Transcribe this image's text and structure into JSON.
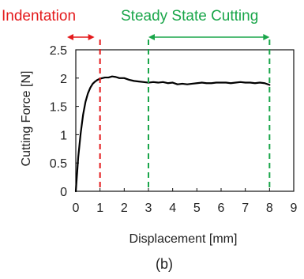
{
  "chart_data": {
    "type": "line",
    "xlabel": "Displacement [mm]",
    "ylabel": "Cutting Force [N]",
    "caption": "(b)",
    "xlim": [
      0,
      9
    ],
    "ylim": [
      0,
      2.5
    ],
    "x_ticks": [
      0,
      1,
      2,
      3,
      4,
      5,
      6,
      7,
      8,
      9
    ],
    "y_ticks": [
      0,
      0.5,
      1,
      1.5,
      2,
      2.5
    ],
    "grid": false,
    "series": [
      {
        "color": "#000000",
        "x": [
          0,
          0.05,
          0.1,
          0.2,
          0.3,
          0.4,
          0.5,
          0.6,
          0.7,
          0.8,
          0.9,
          1.0,
          1.1,
          1.2,
          1.35,
          1.5,
          1.65,
          1.8,
          2.0,
          2.2,
          2.4,
          2.6,
          2.8,
          3.0,
          3.2,
          3.4,
          3.6,
          3.8,
          4.0,
          4.2,
          4.4,
          4.6,
          4.8,
          5.0,
          5.2,
          5.4,
          5.6,
          5.8,
          6.0,
          6.2,
          6.4,
          6.6,
          6.8,
          7.0,
          7.2,
          7.4,
          7.6,
          7.8,
          8.0
        ],
        "y": [
          0.0,
          0.3,
          0.6,
          1.02,
          1.35,
          1.58,
          1.73,
          1.83,
          1.9,
          1.94,
          1.97,
          1.99,
          2.0,
          2.01,
          2.01,
          2.03,
          2.02,
          2.0,
          2.0,
          1.97,
          1.95,
          1.94,
          1.93,
          1.92,
          1.93,
          1.92,
          1.93,
          1.91,
          1.92,
          1.89,
          1.9,
          1.89,
          1.9,
          1.91,
          1.92,
          1.91,
          1.91,
          1.92,
          1.92,
          1.92,
          1.91,
          1.92,
          1.93,
          1.92,
          1.92,
          1.91,
          1.92,
          1.91,
          1.88
        ]
      }
    ],
    "annotations": {
      "indentation": {
        "label": "Indentation",
        "color": "#e41a1c",
        "x_start": 0,
        "x_end": 1
      },
      "steady_state": {
        "label": "Steady State Cutting",
        "color": "#1aa64a",
        "x_start": 3,
        "x_end": 8
      }
    }
  }
}
